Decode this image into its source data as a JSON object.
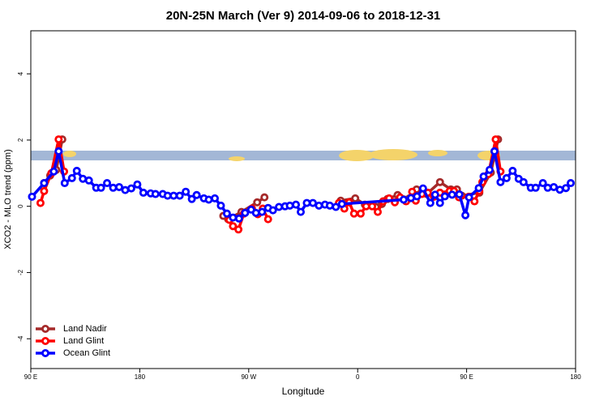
{
  "chart_data": {
    "type": "line",
    "title": "20N-25N March (Ver 9)   2014-09-06 to 2018-12-31",
    "x_label": "Longitude",
    "y_label": "XCO2 - MLO trend (ppm)",
    "xlim": [
      90,
      540
    ],
    "xticks": [
      {
        "value": 90,
        "label": "90 E"
      },
      180,
      {
        "value": 270,
        "label": "90 W"
      },
      {
        "value": 360,
        "label": "0"
      },
      {
        "value": 450,
        "label": "90 E"
      },
      {
        "value": 540,
        "label": "180"
      }
    ],
    "ylim": [
      -4.9,
      5.3
    ],
    "yticks": [
      -4,
      -2,
      0,
      2,
      4
    ],
    "grid": false,
    "legend": "bottom-left",
    "series": [
      {
        "name": "Land Nadir",
        "color": "#a52a2a",
        "x": [
          101,
          106,
          111,
          116,
          null,
          249,
          253,
          264,
          277,
          283,
          null,
          346,
          358,
          366,
          375,
          380,
          384.6,
          393,
          402.7,
          408.7,
          417,
          428,
          437,
          442,
          446,
          460.5,
          470,
          476
        ],
        "values": [
          0.7,
          0.93,
          1.1,
          2.02,
          null,
          -0.29,
          -0.39,
          -0.17,
          0.12,
          0.27,
          null,
          0.17,
          0.24,
          0.05,
          -0.02,
          0.07,
          0.22,
          0.34,
          0.24,
          0.51,
          0.37,
          0.73,
          0.51,
          0.51,
          0.32,
          0.41,
          1.02,
          2.02
        ]
      },
      {
        "name": "Land Glint",
        "color": "#ff0000",
        "x": [
          98,
          101,
          107,
          113,
          117.5,
          null,
          254,
          257,
          261.5,
          266,
          272.7,
          277.5,
          281.6,
          286,
          null,
          344.5,
          349,
          353,
          357,
          362.5,
          367,
          372,
          376.6,
          381,
          386,
          390.7,
          395,
          400,
          405,
          408,
          413,
          418,
          423,
          428,
          436,
          439.6,
          443.7,
          451.8,
          456.5,
          460.5,
          463,
          468,
          474,
          478
        ],
        "values": [
          0.1,
          0.46,
          1.0,
          2.02,
          1.05,
          null,
          -0.41,
          -0.6,
          -0.7,
          -0.22,
          -0.07,
          -0.24,
          -0.07,
          -0.39,
          null,
          0.1,
          -0.07,
          0.12,
          -0.22,
          -0.22,
          0,
          0,
          -0.17,
          0.15,
          0.24,
          0.12,
          0.27,
          0.15,
          0.44,
          0.17,
          0.37,
          0.41,
          0.29,
          0.41,
          0.46,
          0.46,
          0.27,
          0.29,
          0.15,
          0.46,
          0.73,
          0.97,
          2.02,
          1.05
        ]
      },
      {
        "name": "Ocean Glint",
        "color": "#0000ff",
        "x": [
          91,
          101,
          109,
          113,
          118,
          124,
          128,
          133,
          138,
          144,
          148,
          153,
          158,
          163,
          168,
          173,
          178,
          183,
          189,
          193,
          199,
          203,
          208,
          213,
          218,
          223,
          227,
          233,
          237,
          242,
          247,
          252,
          257,
          262,
          267,
          272,
          276,
          281,
          286,
          290,
          295,
          300,
          304,
          309,
          313,
          318,
          323,
          328,
          333,
          337,
          342,
          347,
          398,
          404,
          409,
          414,
          420,
          424,
          428,
          432,
          438,
          444,
          449,
          452,
          460,
          464,
          469,
          473,
          478,
          483,
          488,
          493,
          497,
          503,
          507,
          513,
          517,
          522,
          527,
          532,
          536
        ],
        "values": [
          0.29,
          0.7,
          1.05,
          1.66,
          0.7,
          0.85,
          1.07,
          0.83,
          0.78,
          0.56,
          0.56,
          0.7,
          0.56,
          0.58,
          0.49,
          0.54,
          0.66,
          0.41,
          0.39,
          0.37,
          0.37,
          0.32,
          0.32,
          0.32,
          0.44,
          0.22,
          0.34,
          0.24,
          0.2,
          0.24,
          0.02,
          -0.22,
          -0.34,
          -0.37,
          -0.2,
          -0.1,
          -0.2,
          -0.17,
          -0.05,
          -0.12,
          -0.02,
          0,
          0.02,
          0.05,
          -0.17,
          0.1,
          0.1,
          0.02,
          0.05,
          0.02,
          -0.02,
          0.07,
          0.2,
          0.25,
          0.3,
          0.54,
          0.1,
          0.35,
          0.1,
          0.3,
          0.35,
          0.36,
          -0.27,
          0.27,
          0.55,
          0.9,
          1.1,
          1.66,
          0.73,
          0.85,
          1.07,
          0.83,
          0.73,
          0.56,
          0.56,
          0.7,
          0.56,
          0.58,
          0.5,
          0.55,
          0.7
        ]
      }
    ]
  }
}
